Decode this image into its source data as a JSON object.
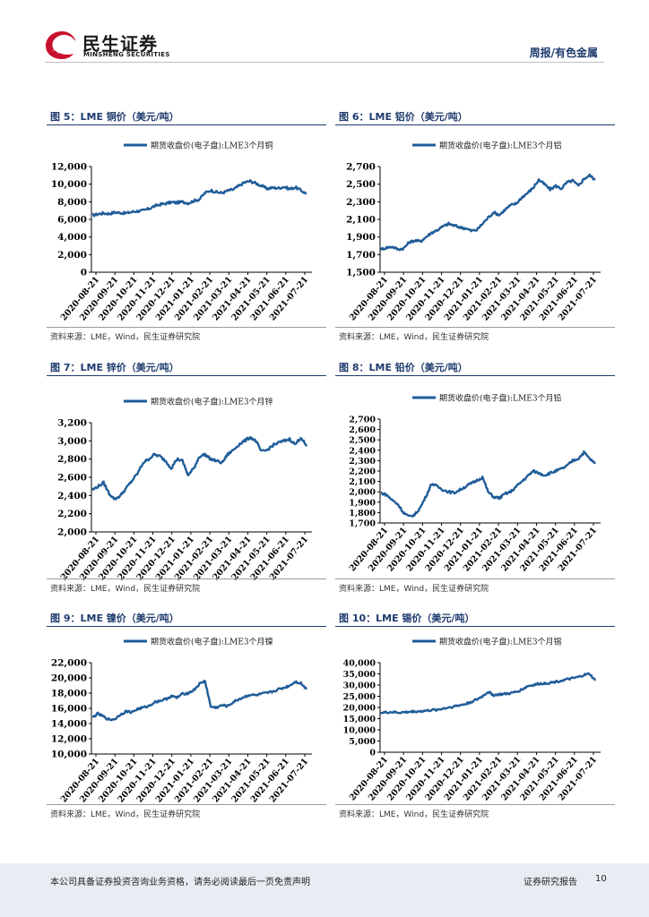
{
  "header": {
    "logo_cn": "民生证券",
    "logo_en": "MINSHENG SECURITIES",
    "report_type": "周报/有色金属"
  },
  "colors": {
    "brand_red": "#c8102e",
    "line_blue": "#1f5c99",
    "title_blue": "#1f3b6e"
  },
  "footer": {
    "disclaimer": "本公司具备证券投资咨询业务资格，请务必阅读最后一页免责声明",
    "label": "证券研究报告",
    "page": "10"
  },
  "chart_data": [
    {
      "type": "line",
      "title": "图 5：LME 铜价（美元/吨）",
      "legend": "期货收盘价(电子盘):LME3个月铜",
      "source": "资料来源：LME，Wind，民生证券研究院",
      "ylim": [
        0,
        12000
      ],
      "yticks": [
        "12,000",
        "10,000",
        "8,000",
        "6,000",
        "4,000",
        "2,000",
        "0"
      ],
      "xticks": [
        "2020-08-21",
        "2020-09-21",
        "2020-10-21",
        "2020-11-21",
        "2020-12-21",
        "2021-01-21",
        "2021-02-21",
        "2021-03-21",
        "2021-04-21",
        "2021-05-21",
        "2021-06-21",
        "2021-07-21"
      ],
      "values": [
        6450,
        6600,
        6700,
        6650,
        6800,
        6750,
        6700,
        6850,
        6950,
        7000,
        7200,
        7500,
        7700,
        7800,
        7950,
        7900,
        8000,
        7850,
        8100,
        8300,
        9000,
        9300,
        9100,
        9000,
        9250,
        9400,
        9800,
        10200,
        10350,
        10100,
        9800,
        9500,
        9600,
        9550,
        9700,
        9450,
        9650,
        9300,
        8900
      ]
    },
    {
      "type": "line",
      "title": "图 6：LME 铝价（美元/吨）",
      "legend": "期货收盘价(电子盘):LME3个月铝",
      "source": "资料来源：LME，Wind，民生证券研究院",
      "ylim": [
        1500,
        2700
      ],
      "yticks": [
        "2,700",
        "2,500",
        "2,300",
        "2,100",
        "1,900",
        "1,700",
        "1,500"
      ],
      "xticks": [
        "2020-08-21",
        "2020-09-21",
        "2020-10-21",
        "2020-11-21",
        "2020-12-21",
        "2021-01-21",
        "2021-02-21",
        "2021-03-21",
        "2021-04-21",
        "2021-05-21",
        "2021-06-21",
        "2021-07-21"
      ],
      "values": [
        1760,
        1780,
        1790,
        1760,
        1770,
        1840,
        1860,
        1850,
        1900,
        1950,
        1980,
        2020,
        2050,
        2030,
        2010,
        2000,
        1970,
        1980,
        2050,
        2120,
        2180,
        2150,
        2210,
        2260,
        2280,
        2350,
        2400,
        2460,
        2550,
        2500,
        2440,
        2480,
        2450,
        2520,
        2540,
        2480,
        2560,
        2600,
        2550
      ]
    },
    {
      "type": "line",
      "title": "图 7：LME 锌价（美元/吨）",
      "legend": "期货收盘价(电子盘):LME3个月锌",
      "source": "资料来源：LME，Wind，民生证券研究院",
      "ylim": [
        2000,
        3200
      ],
      "yticks": [
        "3,200",
        "3,000",
        "2,800",
        "2,600",
        "2,400",
        "2,200",
        "2,000"
      ],
      "xticks": [
        "2020-08-21",
        "2020-09-21",
        "2020-10-21",
        "2020-11-21",
        "2020-12-21",
        "2021-01-21",
        "2021-02-21",
        "2021-03-21",
        "2021-04-21",
        "2021-05-21",
        "2021-06-21",
        "2021-07-21"
      ],
      "values": [
        2460,
        2500,
        2540,
        2420,
        2360,
        2400,
        2480,
        2560,
        2640,
        2760,
        2800,
        2850,
        2830,
        2780,
        2700,
        2800,
        2780,
        2620,
        2700,
        2830,
        2850,
        2800,
        2780,
        2760,
        2850,
        2900,
        2960,
        3000,
        3040,
        3000,
        2880,
        2900,
        2950,
        2980,
        3000,
        3020,
        2960,
        3040,
        2940
      ]
    },
    {
      "type": "line",
      "title": "图 8：LME 铅价（美元/吨）",
      "legend": "期货收盘价(电子盘):LME3个月铅",
      "source": "资料来源：LME，Wind，民生证券研究院",
      "ylim": [
        1700,
        2700
      ],
      "yticks": [
        "2,700",
        "2,600",
        "2,500",
        "2,400",
        "2,300",
        "2,200",
        "2,100",
        "2,000",
        "1,900",
        "1,800",
        "1,700"
      ],
      "xticks": [
        "2020-08-21",
        "2020-09-21",
        "2020-10-21",
        "2020-11-21",
        "2020-12-21",
        "2021-01-21",
        "2021-02-21",
        "2021-03-21",
        "2021-04-21",
        "2021-05-21",
        "2021-06-21",
        "2021-07-21"
      ],
      "values": [
        1990,
        1970,
        1920,
        1880,
        1800,
        1760,
        1780,
        1850,
        1960,
        2080,
        2050,
        2020,
        2000,
        1990,
        2020,
        2050,
        2080,
        2110,
        2140,
        2000,
        1950,
        1940,
        1980,
        2000,
        2050,
        2100,
        2150,
        2200,
        2180,
        2160,
        2180,
        2200,
        2220,
        2250,
        2300,
        2320,
        2380,
        2320,
        2270
      ]
    },
    {
      "type": "line",
      "title": "图 9：LME 镍价（美元/吨）",
      "legend": "期货收盘价(电子盘):LME3个月镍",
      "source": "资料来源：LME，Wind，民生证券研究院",
      "ylim": [
        10000,
        22000
      ],
      "yticks": [
        "22,000",
        "20,000",
        "18,000",
        "16,000",
        "14,000",
        "12,000",
        "10,000"
      ],
      "xticks": [
        "2020-08-21",
        "2020-09-21",
        "2020-10-21",
        "2020-11-21",
        "2020-12-21",
        "2021-01-21",
        "2021-02-21",
        "2021-03-21",
        "2021-04-21",
        "2021-05-21",
        "2021-06-21",
        "2021-07-21"
      ],
      "values": [
        14800,
        15300,
        14900,
        14500,
        14600,
        15200,
        15600,
        15500,
        15900,
        16100,
        16300,
        16800,
        17000,
        17200,
        17600,
        17400,
        17900,
        18000,
        18400,
        19200,
        19600,
        16200,
        16100,
        16400,
        16300,
        16800,
        17200,
        17500,
        17800,
        17700,
        17900,
        18000,
        18200,
        18500,
        18700,
        19000,
        19500,
        19300,
        18500
      ]
    },
    {
      "type": "line",
      "title": "图 10：LME 锡价（美元/吨）",
      "legend": "期货收盘价(电子盘):LME3个月锡",
      "source": "资料来源：LME，Wind，民生证券研究院",
      "ylim": [
        0,
        40000
      ],
      "yticks": [
        "40,000",
        "35,000",
        "30,000",
        "25,000",
        "20,000",
        "15,000",
        "10,000",
        "5,000",
        "0"
      ],
      "xticks": [
        "2020-08-21",
        "2020-09-21",
        "2020-10-21",
        "2020-11-21",
        "2020-12-21",
        "2021-01-21",
        "2021-02-21",
        "2021-03-21",
        "2021-04-21",
        "2021-05-21",
        "2021-06-21",
        "2021-07-21"
      ],
      "values": [
        17600,
        17800,
        17900,
        17700,
        17800,
        18000,
        18200,
        18300,
        18500,
        18800,
        19000,
        19500,
        20000,
        20500,
        21000,
        21500,
        22500,
        23500,
        25000,
        27000,
        25500,
        25800,
        26000,
        26300,
        27000,
        28000,
        29500,
        30000,
        30500,
        30800,
        31000,
        31500,
        32000,
        32500,
        33000,
        33500,
        34500,
        35000,
        32000
      ]
    }
  ]
}
